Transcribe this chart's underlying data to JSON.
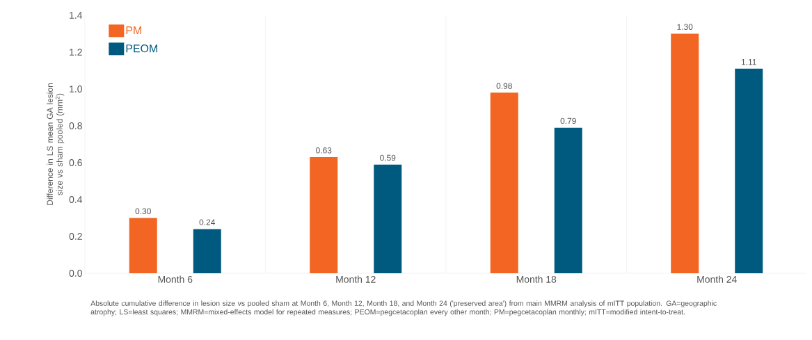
{
  "chart_data": {
    "type": "bar",
    "ylabel": "Difference in LS mean GA lesion size vs sham pooled (mm$^{2}$)",
    "categories": [
      "Month 6",
      "Month 12",
      "Month 18",
      "Month 24"
    ],
    "series": [
      {
        "name": "PM",
        "color": "#f26522",
        "values": [
          0.3,
          0.63,
          0.98,
          1.3
        ],
        "value_labels": [
          "0.30",
          "0.63",
          "0.98",
          "1.30"
        ]
      },
      {
        "name": "PEOM",
        "color": "#005a7f",
        "values": [
          0.24,
          0.59,
          0.79,
          1.11
        ],
        "value_labels": [
          "0.24",
          "0.59",
          "0.79",
          "1.11"
        ]
      }
    ],
    "ylim": [
      0,
      1.4
    ],
    "yticks": [
      {
        "value": 0,
        "label": "0.0"
      },
      {
        "value": 0.2,
        "label": "0.2"
      },
      {
        "value": 0.4,
        "label": "0.4"
      },
      {
        "value": 0.6,
        "label": "0.6"
      },
      {
        "value": 0.8,
        "label": "0.8"
      },
      {
        "value": 1.0,
        "label": "1.0"
      },
      {
        "value": 1.2,
        "label": "1.2"
      },
      {
        "value": 1.4,
        "label": "1.4"
      }
    ],
    "legend": "top left",
    "grid": "x",
    "annotations": [
      "Absolute cumulative difference in lesion size vs pooled sham at Month 6, Month 12, Month 18, and Month 24 ('preserved area') from main MMRM analysis of mITT population. GA=geographic atrophy; LS=least squares; MMRM=mixed-effects model for repeated measures; PEOM=pegcetacoplan every other month; PM=pegcetacoplan monthly; mITT=modified intent-to-treat."
    ]
  }
}
